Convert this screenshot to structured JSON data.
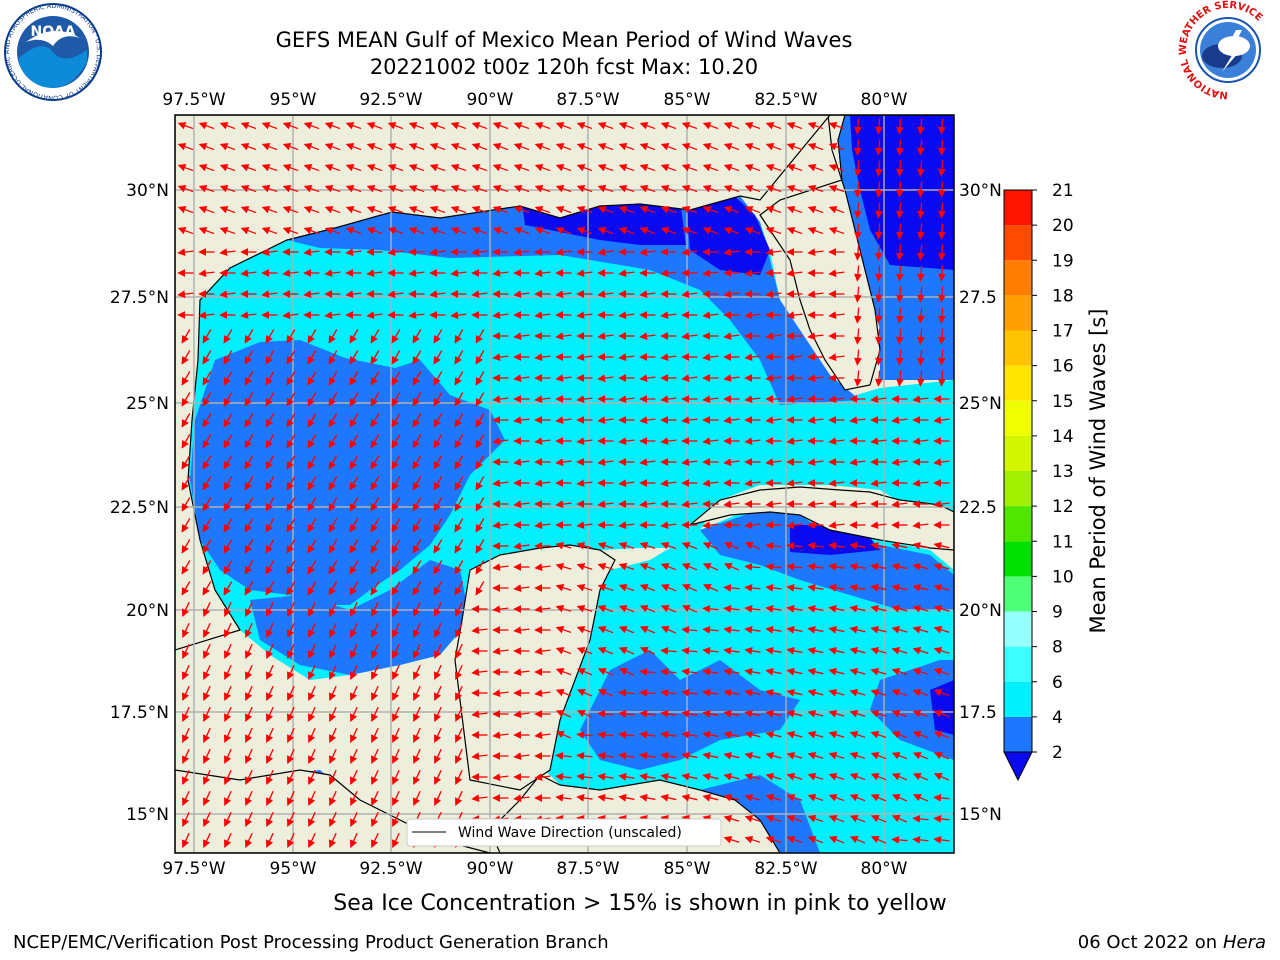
{
  "header": {
    "title_line1": "GEFS MEAN Gulf of Mexico Mean Period of Wind Waves",
    "title_line2": "20221002 t00z 120h fcst   Max: 10.20"
  },
  "logos": {
    "noaa_label": "NOAA",
    "noaa_ring_text": "NATIONAL OCEANIC AND ATMOSPHERIC ADMINISTRATION · U.S. DEPARTMENT OF COMMERCE",
    "nws_ring_text": "NATIONAL WEATHER SERVICE"
  },
  "map": {
    "lon_ticks": [
      "97.5°W",
      "95°W",
      "92.5°W",
      "90°W",
      "87.5°W",
      "85°W",
      "82.5°W",
      "80°W"
    ],
    "lat_ticks_left": [
      "30°N",
      "27.5°N",
      "25°N",
      "22.5°N",
      "20°N",
      "17.5°N",
      "15°N"
    ],
    "lat_ticks_right": [
      "30°N",
      "27.5",
      "25°N",
      "22.5",
      "20°N",
      "17.5",
      "15°N"
    ],
    "legend_label": "Wind Wave Direction (unscaled)",
    "colors": {
      "land": "#eeeedc",
      "coast": "#000000",
      "grid": "#b0b0b0",
      "arrow": "#ff0000"
    }
  },
  "colorbar": {
    "label": "Mean Period of Wind Waves [s]",
    "levels": [
      "2",
      "4",
      "6",
      "8",
      "9",
      "10",
      "11",
      "12",
      "13",
      "14",
      "15",
      "16",
      "17",
      "18",
      "19",
      "20",
      "21"
    ],
    "colors": [
      "#0a0af0",
      "#1e78ff",
      "#00f0ff",
      "#3cffff",
      "#96ffff",
      "#50ff78",
      "#00e000",
      "#50e600",
      "#a0f000",
      "#d2f500",
      "#f0ff00",
      "#ffe600",
      "#ffc300",
      "#ffa000",
      "#ff7d00",
      "#ff4b00",
      "#ff1400"
    ]
  },
  "caption": "Sea Ice Concentration > 15% is shown in pink to yellow",
  "footer": {
    "left": "NCEP/EMC/Verification Post Processing Product Generation Branch",
    "right_date": "06 Oct 2022 on ",
    "right_host": "Hera"
  }
}
